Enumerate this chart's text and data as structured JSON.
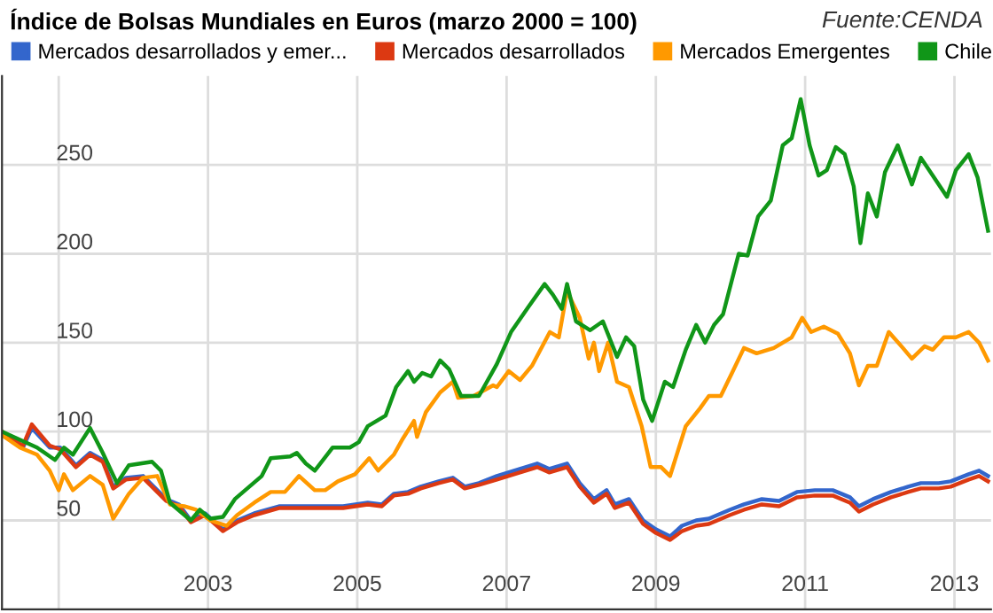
{
  "chart_data": {
    "type": "line",
    "title": "Índice de Bolsas Mundiales en Euros (marzo 2000 = 100)",
    "annotations": [
      "Fuente:CENDA"
    ],
    "xlim": [
      2000.24,
      2013.49
    ],
    "xticks": [
      {
        "value": 2001,
        "label": null
      },
      2003,
      2005,
      2007,
      2009,
      2011,
      2013
    ],
    "ylim": [
      0,
      300
    ],
    "yticks": [
      50,
      100,
      150,
      200,
      250
    ],
    "grid": true,
    "legend": "top",
    "marker": "none",
    "line_style": "solid",
    "series": [
      {
        "name": "Mercados desarrollados y emer...",
        "color": "#3366cc",
        "x": [
          2000.24,
          2000.52,
          2000.64,
          2000.88,
          2001.02,
          2001.23,
          2001.42,
          2001.59,
          2001.73,
          2001.9,
          2002.13,
          2002.44,
          2002.61,
          2002.77,
          2002.96,
          2003.2,
          2003.39,
          2003.62,
          2003.96,
          2004.19,
          2004.5,
          2004.81,
          2005.14,
          2005.33,
          2005.49,
          2005.68,
          2005.85,
          2006.09,
          2006.28,
          2006.44,
          2006.63,
          2006.87,
          2007.1,
          2007.41,
          2007.57,
          2007.81,
          2007.98,
          2008.17,
          2008.34,
          2008.45,
          2008.64,
          2008.83,
          2009.0,
          2009.19,
          2009.35,
          2009.54,
          2009.71,
          2009.99,
          2010.18,
          2010.42,
          2010.65,
          2010.89,
          2011.13,
          2011.37,
          2011.6,
          2011.72,
          2011.91,
          2012.15,
          2012.38,
          2012.55,
          2012.79,
          2012.95,
          2013.19,
          2013.33,
          2013.45
        ],
        "values": [
          100,
          91,
          102,
          91,
          91,
          81,
          88,
          84,
          69,
          74,
          75,
          62,
          59,
          50,
          54,
          45,
          50,
          54,
          58,
          58,
          58,
          58,
          60,
          59,
          65,
          66,
          69,
          72,
          74,
          69,
          71,
          75,
          78,
          82,
          79,
          82,
          71,
          62,
          67,
          59,
          62,
          50,
          45,
          41,
          47,
          50,
          51,
          56,
          59,
          62,
          61,
          66,
          67,
          67,
          63,
          58,
          62,
          66,
          69,
          71,
          71,
          72,
          76,
          78,
          75
        ]
      },
      {
        "name": "Mercados desarrollados",
        "color": "#dc3912",
        "x": [
          2000.24,
          2000.52,
          2000.64,
          2000.88,
          2001.02,
          2001.23,
          2001.42,
          2001.59,
          2001.73,
          2001.9,
          2002.13,
          2002.44,
          2002.61,
          2002.77,
          2002.96,
          2003.2,
          2003.39,
          2003.62,
          2003.96,
          2004.19,
          2004.5,
          2004.81,
          2005.14,
          2005.33,
          2005.49,
          2005.68,
          2005.85,
          2006.09,
          2006.28,
          2006.44,
          2006.63,
          2006.87,
          2007.1,
          2007.41,
          2007.57,
          2007.81,
          2007.98,
          2008.17,
          2008.34,
          2008.45,
          2008.64,
          2008.83,
          2009.0,
          2009.19,
          2009.35,
          2009.54,
          2009.71,
          2009.99,
          2010.18,
          2010.42,
          2010.65,
          2010.89,
          2011.13,
          2011.37,
          2011.6,
          2011.72,
          2011.91,
          2012.15,
          2012.38,
          2012.55,
          2012.79,
          2012.95,
          2013.19,
          2013.33,
          2013.45
        ],
        "values": [
          100,
          92,
          104,
          92,
          90,
          80,
          87,
          83,
          68,
          73,
          74,
          61,
          58,
          49,
          53,
          44,
          49,
          53,
          57,
          57,
          57,
          57,
          59,
          58,
          64,
          65,
          68,
          71,
          73,
          68,
          70,
          73,
          76,
          80,
          77,
          80,
          69,
          60,
          65,
          57,
          60,
          48,
          43,
          39,
          44,
          47,
          48,
          53,
          56,
          59,
          58,
          63,
          64,
          64,
          60,
          55,
          59,
          63,
          66,
          68,
          68,
          69,
          73,
          75,
          72
        ]
      },
      {
        "name": "Mercados Emergentes",
        "color": "#ff9900",
        "x": [
          2000.24,
          2000.48,
          2000.71,
          2000.88,
          2001.0,
          2001.07,
          2001.19,
          2001.42,
          2001.59,
          2001.73,
          2001.94,
          2002.13,
          2002.32,
          2002.49,
          2002.68,
          2002.84,
          2003.03,
          2003.25,
          2003.39,
          2003.62,
          2003.84,
          2004.03,
          2004.22,
          2004.43,
          2004.57,
          2004.74,
          2004.97,
          2005.16,
          2005.28,
          2005.49,
          2005.61,
          2005.76,
          2005.8,
          2005.92,
          2006.11,
          2006.28,
          2006.35,
          2006.56,
          2006.82,
          2006.87,
          2007.03,
          2007.18,
          2007.34,
          2007.58,
          2007.7,
          2007.81,
          2007.98,
          2008.1,
          2008.17,
          2008.24,
          2008.36,
          2008.48,
          2008.64,
          2008.81,
          2008.93,
          2009.07,
          2009.19,
          2009.4,
          2009.59,
          2009.71,
          2009.87,
          2010.02,
          2010.18,
          2010.35,
          2010.58,
          2010.82,
          2010.96,
          2011.08,
          2011.25,
          2011.44,
          2011.6,
          2011.72,
          2011.84,
          2011.96,
          2012.12,
          2012.31,
          2012.43,
          2012.6,
          2012.71,
          2012.86,
          2013.02,
          2013.19,
          2013.33,
          2013.45
        ],
        "values": [
          98,
          91,
          87,
          78,
          67,
          76,
          67,
          75,
          70,
          51,
          65,
          74,
          75,
          59,
          58,
          56,
          50,
          47,
          53,
          60,
          66,
          66,
          75,
          67,
          67,
          72,
          76,
          85,
          78,
          87,
          96,
          106,
          97,
          111,
          122,
          128,
          119,
          120,
          126,
          125,
          134,
          129,
          137,
          156,
          153,
          179,
          164,
          141,
          150,
          134,
          150,
          128,
          125,
          103,
          80,
          80,
          75,
          103,
          113,
          120,
          120,
          133,
          147,
          144,
          147,
          153,
          164,
          156,
          159,
          155,
          144,
          126,
          137,
          137,
          156,
          147,
          141,
          148,
          146,
          153,
          153,
          156,
          150,
          140
        ]
      },
      {
        "name": "Chile",
        "color": "#109618",
        "x": [
          2000.24,
          2000.71,
          2000.95,
          2001.07,
          2001.19,
          2001.42,
          2001.59,
          2001.78,
          2001.94,
          2002.25,
          2002.37,
          2002.49,
          2002.77,
          2002.89,
          2003.03,
          2003.2,
          2003.36,
          2003.72,
          2003.84,
          2004.1,
          2004.19,
          2004.31,
          2004.43,
          2004.67,
          2004.9,
          2005.02,
          2005.14,
          2005.38,
          2005.52,
          2005.68,
          2005.76,
          2005.87,
          2005.99,
          2006.11,
          2006.23,
          2006.39,
          2006.63,
          2006.87,
          2007.06,
          2007.29,
          2007.51,
          2007.62,
          2007.74,
          2007.81,
          2007.93,
          2008.12,
          2008.29,
          2008.48,
          2008.6,
          2008.71,
          2008.83,
          2008.95,
          2009.12,
          2009.23,
          2009.4,
          2009.54,
          2009.66,
          2009.78,
          2009.9,
          2010.11,
          2010.23,
          2010.37,
          2010.54,
          2010.7,
          2010.82,
          2010.94,
          2011.06,
          2011.18,
          2011.29,
          2011.41,
          2011.53,
          2011.65,
          2011.74,
          2011.84,
          2011.96,
          2012.07,
          2012.24,
          2012.43,
          2012.55,
          2012.71,
          2012.9,
          2013.02,
          2013.19,
          2013.31,
          2013.45
        ],
        "values": [
          100,
          91,
          84,
          91,
          87,
          102,
          88,
          71,
          81,
          83,
          78,
          60,
          50,
          56,
          51,
          52,
          62,
          75,
          85,
          86,
          88,
          82,
          78,
          91,
          91,
          94,
          103,
          109,
          125,
          134,
          128,
          133,
          131,
          140,
          135,
          120,
          120,
          138,
          156,
          170,
          183,
          177,
          169,
          183,
          162,
          157,
          162,
          142,
          153,
          148,
          118,
          106,
          128,
          125,
          146,
          160,
          150,
          160,
          166,
          200,
          199,
          221,
          230,
          261,
          265,
          287,
          261,
          244,
          247,
          260,
          256,
          238,
          206,
          234,
          221,
          246,
          261,
          239,
          254,
          244,
          232,
          247,
          256,
          243,
          213
        ]
      }
    ]
  }
}
